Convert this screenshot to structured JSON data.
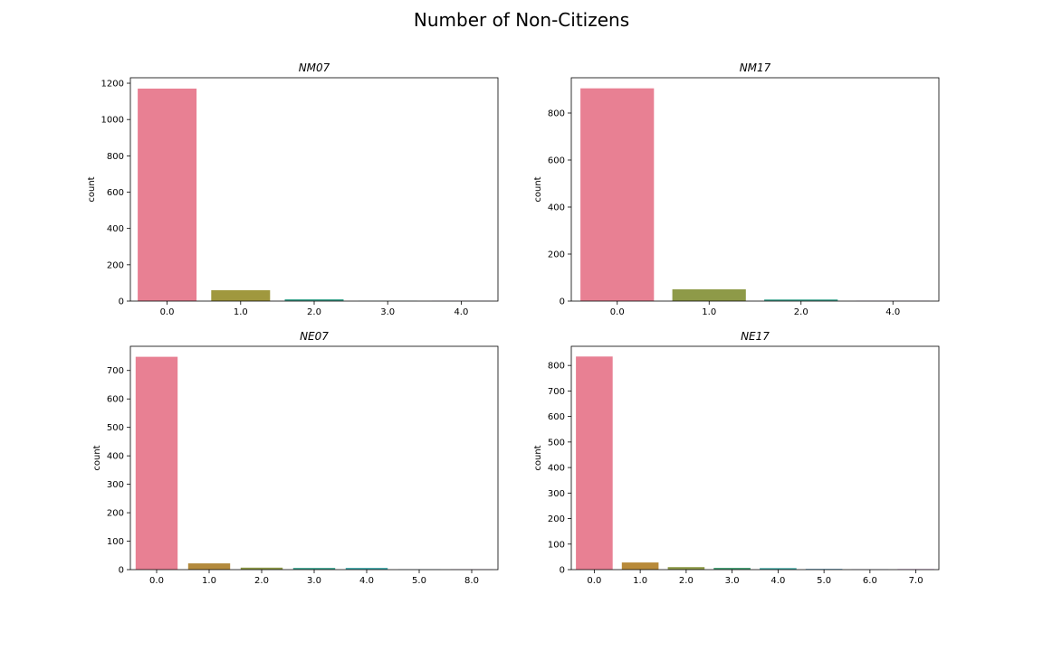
{
  "figure": {
    "title": "Number of Non-Citizens"
  },
  "chart_data": [
    {
      "type": "bar",
      "title": "NM07",
      "xlabel": "",
      "ylabel": "count",
      "categories": [
        "0.0",
        "1.0",
        "2.0",
        "3.0",
        "4.0"
      ],
      "values": [
        1170,
        60,
        10,
        1,
        1
      ],
      "colors": [
        "#e88093",
        "#a0983e",
        "#3ea48f",
        "#4fa3b5",
        "#b98fe0"
      ],
      "ylim": [
        0,
        1230
      ],
      "yticks": [
        0,
        200,
        400,
        600,
        800,
        1000,
        1200
      ]
    },
    {
      "type": "bar",
      "title": "NM17",
      "xlabel": "",
      "ylabel": "count",
      "categories": [
        "0.0",
        "1.0",
        "2.0",
        "4.0"
      ],
      "values": [
        905,
        50,
        7,
        1
      ],
      "colors": [
        "#e88093",
        "#8e9a48",
        "#3ea48f",
        "#b98fe0"
      ],
      "ylim": [
        0,
        950
      ],
      "yticks": [
        0,
        200,
        400,
        600,
        800
      ]
    },
    {
      "type": "bar",
      "title": "NE07",
      "xlabel": "",
      "ylabel": "count",
      "categories": [
        "0.0",
        "1.0",
        "2.0",
        "3.0",
        "4.0",
        "5.0",
        "8.0"
      ],
      "values": [
        748,
        22,
        7,
        6,
        6,
        1,
        1
      ],
      "colors": [
        "#e88093",
        "#b38a3d",
        "#8e9a48",
        "#3ea48f",
        "#3ea5a8",
        "#6fa8d8",
        "#c58ad8"
      ],
      "ylim": [
        0,
        785
      ],
      "yticks": [
        0,
        100,
        200,
        300,
        400,
        500,
        600,
        700
      ]
    },
    {
      "type": "bar",
      "title": "NE17",
      "xlabel": "",
      "ylabel": "count",
      "categories": [
        "0.0",
        "1.0",
        "2.0",
        "3.0",
        "4.0",
        "5.0",
        "6.0",
        "7.0"
      ],
      "values": [
        835,
        28,
        10,
        7,
        6,
        3,
        1,
        2
      ],
      "colors": [
        "#e88093",
        "#b88a3a",
        "#8e9a48",
        "#4aa277",
        "#3ea5a0",
        "#5fa5c8",
        "#9c98e0",
        "#d68ad0"
      ],
      "ylim": [
        0,
        875
      ],
      "yticks": [
        0,
        100,
        200,
        300,
        400,
        500,
        600,
        700,
        800
      ]
    }
  ]
}
